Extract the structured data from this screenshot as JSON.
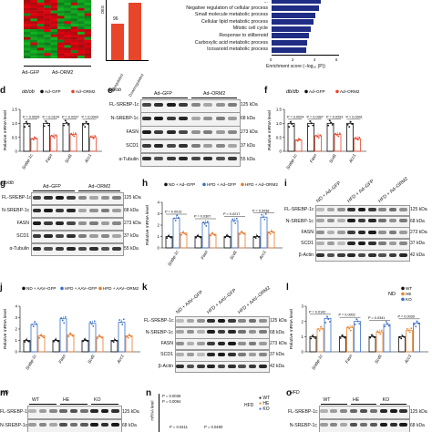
{
  "colors": {
    "heatmap_red": "#e0241b",
    "heatmap_green": "#2db032",
    "go_bar": "#1f2d84",
    "gfp_black": "#111111",
    "orm2_red": "#e8452b",
    "nd_black": "#111111",
    "hfd_aav_gfp_blue": "#3a6fc8",
    "hfd_aav_orm2_orange": "#e87a2b",
    "wt_black": "#111111",
    "he_orange": "#e8842b",
    "ko_blue": "#3a6fc8"
  },
  "panel_labels": [
    "d",
    "e",
    "f",
    "g",
    "h",
    "i",
    "j",
    "k",
    "l",
    "m",
    "n",
    "o"
  ],
  "heatmap": {
    "xlabels": [
      "Ad–GFP",
      "Ad–ORM2"
    ]
  },
  "deg_bar": {
    "value_label": "96",
    "categories": [
      "Upregulated",
      "Downregulated"
    ],
    "ylabel": "DEG"
  },
  "go": {
    "terms": [
      "Negative regulation of cellular process",
      "Small molecule metabolic process",
      "Cellular lipid metabolic process",
      "Mitotic cell cycle",
      "Response to stilbenoid",
      "Carboxylic acid metabolic process",
      "Icosanoid metabolic process"
    ],
    "enrichment": [
      4.2,
      3.9,
      3.7,
      3.5,
      3.35,
      3.2,
      3.05
    ],
    "cut_label": "...",
    "xlabel": "Enrichment score (–log₁₀ (P))",
    "ticks": [
      "0",
      "2",
      "4",
      "6"
    ]
  },
  "chart_data": [
    {
      "panel": "d",
      "type": "bar",
      "title": "ob/ob",
      "legend": [
        "Ad–GFP",
        "Ad–ORM2"
      ],
      "categories": [
        "Srebp-1c",
        "Fasn",
        "Scd1",
        "Acc1"
      ],
      "ylabel": "Relative mRNA level",
      "ylim": [
        0,
        1.5
      ],
      "yticks": [
        "0",
        "0.5",
        "1.0",
        "1.5"
      ],
      "pvalues": [
        "P = 0.0026",
        "P = 0.0104",
        "P = 0.0237",
        "P = 0.0043"
      ],
      "series": [
        {
          "name": "Ad–GFP",
          "values": [
            1.0,
            1.0,
            1.0,
            1.0
          ]
        },
        {
          "name": "Ad–ORM2",
          "values": [
            0.45,
            0.55,
            0.6,
            0.5
          ]
        }
      ]
    },
    {
      "panel": "f",
      "type": "bar",
      "title": "db/db",
      "legend": [
        "Ad–GFP",
        "Ad–ORM2"
      ],
      "categories": [
        "Srebp-1c",
        "Fasn",
        "Scd1",
        "Acc1"
      ],
      "ylabel": "Relative mRNA level",
      "ylim": [
        0,
        1.5
      ],
      "yticks": [
        "0",
        "0.5",
        "1.0",
        "1.5"
      ],
      "pvalues": [
        "P = 0.0024",
        "P = 0.0397",
        "P = 0.0293",
        "P = 0.0041"
      ],
      "series": [
        {
          "name": "Ad–GFP",
          "values": [
            1.0,
            1.0,
            1.0,
            1.0
          ]
        },
        {
          "name": "Ad–ORM2",
          "values": [
            0.4,
            0.55,
            0.6,
            0.45
          ]
        }
      ]
    },
    {
      "panel": "h",
      "type": "bar",
      "legend": [
        "ND + Ad–GFP",
        "HFD + Ad–GFP",
        "HFD + Ad–ORM2"
      ],
      "categories": [
        "Srebp-1c",
        "Fasn",
        "Scd1",
        "Acc1"
      ],
      "ylabel": "Relative mRNA level",
      "ylim": [
        0,
        4
      ],
      "yticks": [
        "0",
        "1",
        "2",
        "3",
        "4"
      ],
      "pvalues": [
        "P = 0.0019",
        "P = 0.0307",
        "P = 0.0217",
        "P = 0.0038"
      ],
      "series": [
        {
          "name": "ND + Ad–GFP",
          "values": [
            1.0,
            1.0,
            1.0,
            1.0
          ]
        },
        {
          "name": "HFD + Ad–GFP",
          "values": [
            2.6,
            2.2,
            2.4,
            2.7
          ]
        },
        {
          "name": "HFD + Ad–ORM2",
          "values": [
            1.3,
            1.2,
            1.3,
            1.4
          ]
        }
      ]
    },
    {
      "panel": "j",
      "type": "bar",
      "legend": [
        "ND + AAV–GFP",
        "HFD + AAV–GFP",
        "HFD + AAV–ORM2"
      ],
      "categories": [
        "Srebp-1c",
        "Fasn",
        "Scd1",
        "Acc1"
      ],
      "ylabel": "Relative mRNA level",
      "ylim": [
        0,
        4
      ],
      "yticks": [
        "0",
        "1",
        "2",
        "3",
        "4"
      ],
      "series": [
        {
          "name": "ND + AAV–GFP",
          "values": [
            1.0,
            1.0,
            1.0,
            1.0
          ]
        },
        {
          "name": "HFD + AAV–GFP",
          "values": [
            2.4,
            2.9,
            2.5,
            2.6
          ]
        },
        {
          "name": "HFD + AAV–ORM2",
          "values": [
            1.4,
            1.5,
            1.3,
            1.4
          ]
        }
      ]
    },
    {
      "panel": "l",
      "type": "bar",
      "legend_title": "ND",
      "legend": [
        "WT",
        "HE",
        "KO"
      ],
      "categories": [
        "Srebp-1c",
        "Fasn",
        "Scd1",
        "Acc1"
      ],
      "ylabel": "Relative mRNA level",
      "ylim": [
        0,
        3
      ],
      "yticks": [
        "0",
        "1",
        "2",
        "3"
      ],
      "pvalues": [
        "P = 0.0142",
        "P = 0.0002",
        "P = 0.0341",
        "P = 0.0039"
      ],
      "series": [
        {
          "name": "WT",
          "values": [
            1.0,
            1.0,
            1.0,
            1.0
          ]
        },
        {
          "name": "HE",
          "values": [
            1.5,
            1.6,
            1.3,
            1.4
          ]
        },
        {
          "name": "KO",
          "values": [
            2.2,
            2.0,
            1.8,
            1.9
          ]
        }
      ]
    }
  ],
  "blots": {
    "e": {
      "title": "ob/ob",
      "groups": [
        "Ad–GFP",
        "Ad–ORM2"
      ],
      "rows": [
        {
          "label": "FL-SREBP-1c",
          "kda": "125 kDa"
        },
        {
          "label": "N-SREBP-1c",
          "kda": "68 kDa"
        },
        {
          "label": "FASN",
          "kda": "273 kDa"
        },
        {
          "label": "SCD1",
          "kda": "37 kDa"
        },
        {
          "label": "α-Tubulin",
          "kda": "55 kDa"
        }
      ]
    },
    "g": {
      "title": "db/db",
      "groups": [
        "Ad–GFP",
        "Ad–ORM2"
      ],
      "rows": [
        {
          "label": "FL-SREBP-1c",
          "kda": "125 kDa"
        },
        {
          "label": "N-SREBP-1c",
          "kda": "68 kDa"
        },
        {
          "label": "FASN",
          "kda": "273 kDa"
        },
        {
          "label": "SCD1",
          "kda": "37 kDa"
        },
        {
          "label": "α-Tubulin",
          "kda": "55 kDa"
        }
      ]
    },
    "i": {
      "groups": [
        "ND + Ad–GFP",
        "HFD + Ad–GFP",
        "HFD + Ad–ORM2"
      ],
      "rows": [
        {
          "label": "FL-SREBP-1c",
          "kda": "125 kDa"
        },
        {
          "label": "N-SREBP-1c",
          "kda": "68 kDa"
        },
        {
          "label": "FASN",
          "kda": "273 kDa"
        },
        {
          "label": "SCD1",
          "kda": "37 kDa"
        },
        {
          "label": "β-Actin",
          "kda": "42 kDa"
        }
      ]
    },
    "k": {
      "groups": [
        "ND + AAV–GFP",
        "HFD + AAV–GFP",
        "HFD + AAV–ORM2"
      ],
      "rows": [
        {
          "label": "FL-SREBP-1c",
          "kda": "125 kDa"
        },
        {
          "label": "N-SREBP-1c",
          "kda": "68 kDa"
        },
        {
          "label": "FASN",
          "kda": "273 kDa"
        },
        {
          "label": "SCD1",
          "kda": "37 kDa"
        },
        {
          "label": "β-Actin",
          "kda": "42 kDa"
        }
      ]
    },
    "m": {
      "title": "ND",
      "groups": [
        "WT",
        "HE",
        "KO"
      ],
      "rows": [
        {
          "label": "FL-SREBP-1c",
          "kda": "125 kDa"
        },
        {
          "label": "N-SREBP-1c",
          "kda": "68 kDa"
        }
      ]
    },
    "o": {
      "title": "HFD",
      "groups": [
        "WT",
        "HE",
        "KO"
      ],
      "rows": [
        {
          "label": "FL-SREBP-1c",
          "kda": "125 kDa"
        },
        {
          "label": "N-SREBP-1c",
          "kda": "68 kDa"
        }
      ]
    }
  },
  "panel_n": {
    "legend_title": "HFD",
    "legend": [
      "WT",
      "HE",
      "KO"
    ],
    "pvalues": [
      "P = 0.0036",
      "P = 0.0094",
      "P = 0.0411",
      "P = 0.0480"
    ],
    "ylabel": "mRNA level"
  }
}
